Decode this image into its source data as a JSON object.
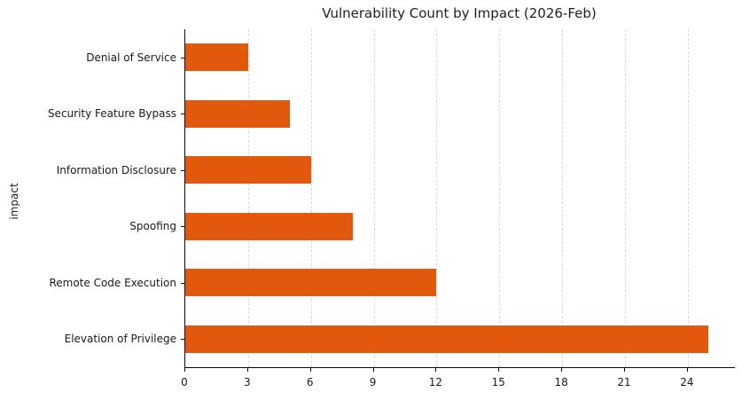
{
  "chart_data": {
    "type": "bar",
    "orientation": "horizontal",
    "title": "Vulnerability Count by Impact (2026-Feb)",
    "xlabel": "",
    "ylabel": "impact",
    "categories": [
      "Denial of Service",
      "Security Feature Bypass",
      "Information Disclosure",
      "Spoofing",
      "Remote Code Execution",
      "Elevation of Privilege"
    ],
    "values": [
      3,
      5,
      6,
      8,
      12,
      25
    ],
    "x_ticks": [
      0,
      3,
      6,
      9,
      12,
      15,
      18,
      21,
      24
    ],
    "xlim": [
      0,
      26.25
    ],
    "bar_color": "#e2580c",
    "grid": "vertical-dashed",
    "legend": "none",
    "background_color": "#ffffff"
  }
}
